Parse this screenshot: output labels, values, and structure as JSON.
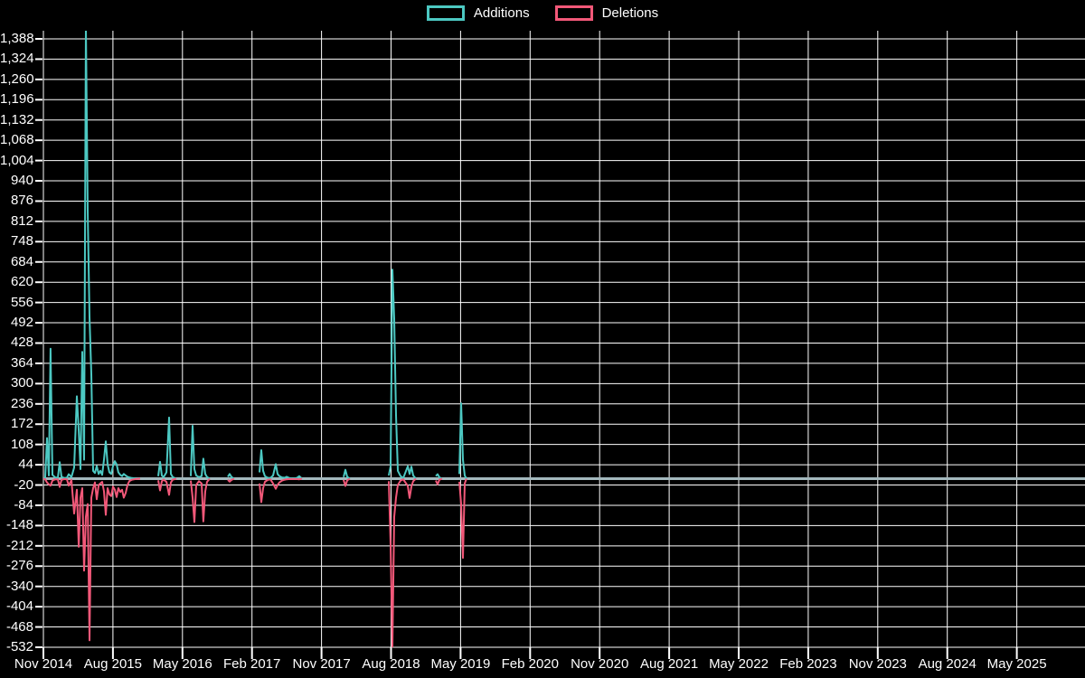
{
  "legend": {
    "additions_label": "Additions",
    "deletions_label": "Deletions"
  },
  "chart_data": {
    "type": "line",
    "title": "",
    "legend_position": "top",
    "grid": true,
    "background_color": "#000000",
    "gridline_color": "#ffffff",
    "text_color": "#ffffff",
    "zero_line_color": "#a3b8bd",
    "y_axis": {
      "max": 1388,
      "min": -532,
      "step": 64,
      "tick_labels": [
        "1,388",
        "1,324",
        "1,260",
        "1,196",
        "1,132",
        "1,068",
        "1,004",
        "940",
        "876",
        "812",
        "748",
        "684",
        "620",
        "556",
        "492",
        "428",
        "364",
        "300",
        "236",
        "172",
        "108",
        "44",
        "-20",
        "-84",
        "-148",
        "-212",
        "-276",
        "-340",
        "-404",
        "-468",
        "-532"
      ]
    },
    "x_ticks": [
      "Nov 2014",
      "Aug 2015",
      "May 2016",
      "Feb 2017",
      "Nov 2017",
      "Aug 2018",
      "May 2019",
      "Feb 2020",
      "Nov 2020",
      "Aug 2021",
      "May 2022",
      "Feb 2023",
      "Nov 2023",
      "Aug 2024",
      "May 2025"
    ],
    "series": [
      {
        "name": "Additions",
        "color": "#4cc8c2"
      },
      {
        "name": "Deletions",
        "color": "#f25879"
      }
    ],
    "points_format": [
      "date",
      "additions",
      "deletions",
      "x_fraction_of_plot"
    ],
    "points": [
      [
        "2014-11-12",
        0,
        0,
        0.0
      ],
      [
        "2014-11-19",
        3,
        -2,
        0.0017
      ],
      [
        "2014-11-26",
        128,
        -12,
        0.0035
      ],
      [
        "2014-12-03",
        10,
        -18,
        0.0052
      ],
      [
        "2014-12-10",
        410,
        -22,
        0.0069
      ],
      [
        "2014-12-17",
        12,
        -6,
        0.0087
      ],
      [
        "2014-12-28",
        4,
        -2,
        0.0113
      ],
      [
        "2015-01-08",
        3,
        -2,
        0.0139
      ],
      [
        "2015-01-15",
        52,
        -26,
        0.0156
      ],
      [
        "2015-01-22",
        6,
        -4,
        0.0174
      ],
      [
        "2015-02-03",
        2,
        -1,
        0.02
      ],
      [
        "2015-02-13",
        3,
        -2,
        0.0226
      ],
      [
        "2015-02-20",
        14,
        -22,
        0.0243
      ],
      [
        "2015-03-01",
        5,
        -4,
        0.0269
      ],
      [
        "2015-03-12",
        35,
        -110,
        0.0295
      ],
      [
        "2015-03-22",
        260,
        -35,
        0.0321
      ],
      [
        "2015-03-29",
        150,
        -215,
        0.0339
      ],
      [
        "2015-04-06",
        30,
        -60,
        0.0356
      ],
      [
        "2015-04-13",
        400,
        -30,
        0.0373
      ],
      [
        "2015-04-20",
        60,
        -290,
        0.0391
      ],
      [
        "2015-04-27",
        1430,
        -120,
        0.0408
      ],
      [
        "2015-05-04",
        845,
        -80,
        0.0425
      ],
      [
        "2015-05-11",
        510,
        -510,
        0.0443
      ],
      [
        "2015-05-18",
        330,
        -60,
        0.046
      ],
      [
        "2015-05-25",
        25,
        -30,
        0.0477
      ],
      [
        "2015-06-01",
        18,
        -12,
        0.0495
      ],
      [
        "2015-06-08",
        40,
        -65,
        0.0512
      ],
      [
        "2015-06-16",
        15,
        -20,
        0.053
      ],
      [
        "2015-06-23",
        25,
        -15,
        0.0547
      ],
      [
        "2015-06-30",
        12,
        -10,
        0.0564
      ],
      [
        "2015-07-07",
        60,
        -40,
        0.0582
      ],
      [
        "2015-07-14",
        118,
        -114,
        0.0599
      ],
      [
        "2015-07-21",
        45,
        -30,
        0.0616
      ],
      [
        "2015-07-28",
        20,
        -50,
        0.0634
      ],
      [
        "2015-08-05",
        15,
        -55,
        0.0651
      ],
      [
        "2015-08-12",
        40,
        -25,
        0.0668
      ],
      [
        "2015-08-19",
        55,
        -35,
        0.0686
      ],
      [
        "2015-08-26",
        45,
        -58,
        0.0703
      ],
      [
        "2015-09-03",
        20,
        -30,
        0.072
      ],
      [
        "2015-09-10",
        12,
        -42,
        0.0738
      ],
      [
        "2015-09-17",
        8,
        -35,
        0.0755
      ],
      [
        "2015-09-24",
        15,
        -60,
        0.0772
      ],
      [
        "2015-10-01",
        10,
        -45,
        0.079
      ],
      [
        "2015-10-08",
        6,
        -20,
        0.0807
      ],
      [
        "2015-10-15",
        4,
        -8,
        0.0825
      ],
      [
        "2015-10-26",
        2,
        -3,
        0.0851
      ],
      [
        "2015-11-10",
        1,
        -1,
        0.0885
      ],
      [
        "2015-11-28",
        0,
        0,
        0.0929
      ],
      [
        "2016-02-08",
        8,
        -5,
        0.1102
      ],
      [
        "2016-02-15",
        53,
        -37,
        0.112
      ],
      [
        "2016-02-22",
        10,
        -8,
        0.1137
      ],
      [
        "2016-02-29",
        5,
        -3,
        0.1154
      ],
      [
        "2016-03-10",
        20,
        -10,
        0.1181
      ],
      [
        "2016-03-20",
        193,
        -51,
        0.1207
      ],
      [
        "2016-03-27",
        15,
        -12,
        0.1224
      ],
      [
        "2016-04-03",
        5,
        -3,
        0.1241
      ],
      [
        "2016-04-18",
        0,
        0,
        0.1276
      ],
      [
        "2016-06-14",
        8,
        -6,
        0.1415
      ],
      [
        "2016-06-21",
        167,
        -60,
        0.1432
      ],
      [
        "2016-06-28",
        30,
        -137,
        0.145
      ],
      [
        "2016-07-05",
        10,
        -20,
        0.1467
      ],
      [
        "2016-07-16",
        5,
        -8,
        0.1493
      ],
      [
        "2016-07-26",
        8,
        -15,
        0.1519
      ],
      [
        "2016-08-03",
        63,
        -135,
        0.1536
      ],
      [
        "2016-08-10",
        15,
        -40,
        0.1554
      ],
      [
        "2016-08-17",
        5,
        -10,
        0.1571
      ],
      [
        "2016-08-28",
        0,
        0,
        0.1597
      ],
      [
        "2016-11-08",
        6,
        -4,
        0.1771
      ],
      [
        "2016-11-15",
        15,
        -9,
        0.1788
      ],
      [
        "2016-11-22",
        5,
        -4,
        0.1806
      ],
      [
        "2016-11-29",
        0,
        0,
        0.1832
      ],
      [
        "2017-03-11",
        20,
        -15,
        0.2075
      ],
      [
        "2017-03-18",
        90,
        -74,
        0.2092
      ],
      [
        "2017-03-25",
        25,
        -30,
        0.2109
      ],
      [
        "2017-04-01",
        8,
        -10,
        0.2127
      ],
      [
        "2017-04-12",
        3,
        -4,
        0.2153
      ],
      [
        "2017-04-23",
        2,
        -2,
        0.2179
      ],
      [
        "2017-05-03",
        10,
        -15,
        0.2205
      ],
      [
        "2017-05-14",
        46,
        -32,
        0.2231
      ],
      [
        "2017-05-21",
        15,
        -20,
        0.2248
      ],
      [
        "2017-05-28",
        8,
        -12,
        0.2266
      ],
      [
        "2017-06-08",
        4,
        -6,
        0.2292
      ],
      [
        "2017-06-18",
        3,
        -3,
        0.2318
      ],
      [
        "2017-06-26",
        6,
        -2,
        0.2335
      ],
      [
        "2017-07-06",
        2,
        -1,
        0.2361
      ],
      [
        "2017-07-20",
        1,
        -1,
        0.2396
      ],
      [
        "2017-08-03",
        2,
        -1,
        0.2431
      ],
      [
        "2017-08-15",
        8,
        -2,
        0.2457
      ],
      [
        "2017-08-25",
        0,
        0,
        0.2483
      ],
      [
        "2018-02-07",
        5,
        -4,
        0.2882
      ],
      [
        "2018-02-14",
        28,
        -23,
        0.2899
      ],
      [
        "2018-02-21",
        6,
        -5,
        0.2917
      ],
      [
        "2018-03-01",
        0,
        0,
        0.2943
      ],
      [
        "2018-08-02",
        10,
        -8,
        0.3316
      ],
      [
        "2018-08-09",
        40,
        -210,
        0.3333
      ],
      [
        "2018-08-16",
        660,
        -530,
        0.3351
      ],
      [
        "2018-08-23",
        505,
        -120,
        0.3368
      ],
      [
        "2018-08-30",
        200,
        -60,
        0.3385
      ],
      [
        "2018-09-06",
        25,
        -20,
        0.3403
      ],
      [
        "2018-09-17",
        8,
        -6,
        0.3429
      ],
      [
        "2018-09-27",
        2,
        -2,
        0.3455
      ],
      [
        "2018-10-16",
        39,
        -23,
        0.3498
      ],
      [
        "2018-10-23",
        15,
        -61,
        0.3516
      ],
      [
        "2018-10-30",
        38,
        -25,
        0.3533
      ],
      [
        "2018-11-06",
        10,
        -8,
        0.355
      ],
      [
        "2018-11-16",
        0,
        0,
        0.3576
      ],
      [
        "2019-02-05",
        8,
        -6,
        0.3767
      ],
      [
        "2019-02-12",
        14,
        -18,
        0.3785
      ],
      [
        "2019-02-19",
        4,
        -3,
        0.3802
      ],
      [
        "2019-03-01",
        0,
        0,
        0.3828
      ],
      [
        "2019-05-06",
        15,
        -10,
        0.3993
      ],
      [
        "2019-05-13",
        238,
        -80,
        0.401
      ],
      [
        "2019-05-20",
        60,
        -250,
        0.4028
      ],
      [
        "2019-05-27",
        10,
        -15,
        0.4045
      ],
      [
        "2019-06-03",
        0,
        0,
        0.4062
      ]
    ]
  }
}
